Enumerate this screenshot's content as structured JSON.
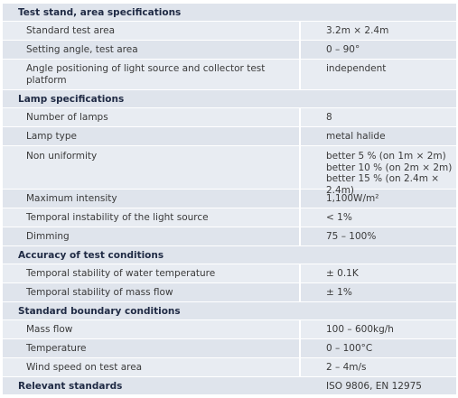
{
  "sections": [
    {
      "title": "Test stand, area specifications",
      "value": "",
      "rows": [
        {
          "label": "Standard test area",
          "value": "3.2m × 2.4m"
        },
        {
          "label": "Setting angle, test area",
          "value": "0 – 90°"
        },
        {
          "label": "Angle positioning of light source and collector test platform",
          "value": "independent"
        }
      ]
    },
    {
      "title": "Lamp specifications",
      "value": "",
      "rows": [
        {
          "label": "Number of lamps",
          "value": "8"
        },
        {
          "label": "Lamp type",
          "value": "metal halide"
        },
        {
          "label": "Non uniformity",
          "values": [
            "better 5 % (on 1m × 2m)",
            "better 10 % (on 2m × 2m)",
            "better 15 % (on 2.4m × 2.4m)"
          ]
        },
        {
          "label": "Maximum intensity",
          "value": "1,100W/m²"
        },
        {
          "label": "Temporal instability of the light source",
          "value": "< 1%"
        },
        {
          "label": "Dimming",
          "value": "75 – 100%"
        }
      ]
    },
    {
      "title": "Accuracy of test conditions",
      "value": "",
      "rows": [
        {
          "label": "Temporal stability of water temperature",
          "value": "± 0.1K"
        },
        {
          "label": "Temporal stability of mass flow",
          "value": "± 1%"
        }
      ]
    },
    {
      "title": "Standard boundary conditions",
      "value": "",
      "rows": [
        {
          "label": "Mass flow",
          "value": "100 – 600kg/h"
        },
        {
          "label": "Temperature",
          "value": "0 – 100°C"
        },
        {
          "label": "Wind speed on test area",
          "value": "2 – 4m/s"
        }
      ]
    },
    {
      "title": "Relevant standards",
      "value": "ISO 9806, EN 12975",
      "rows": []
    }
  ]
}
